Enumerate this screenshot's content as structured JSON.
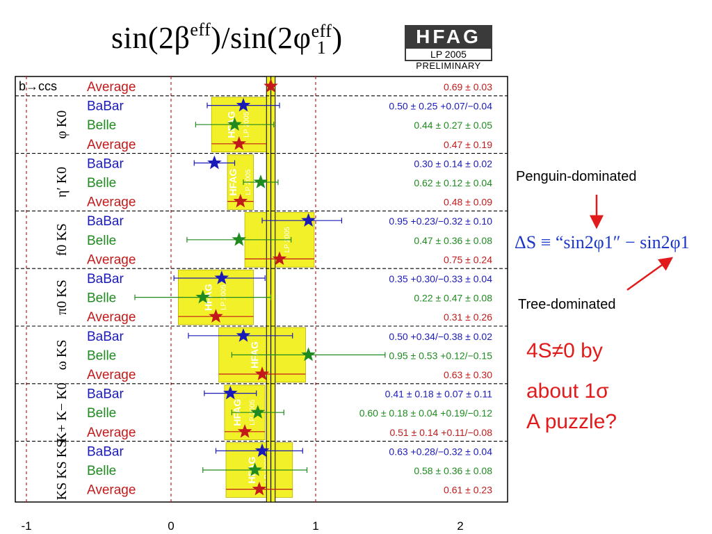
{
  "title": {
    "prefix": "sin(2β",
    "sup1": "eff",
    "mid": ")/sin(2φ",
    "sup2": "eff",
    "sub2": "1",
    "suffix": ")"
  },
  "logo": {
    "name": "HFAG",
    "edition": "LP 2005",
    "status": "PRELIMINARY"
  },
  "annotations": {
    "penguin": "Penguin-dominated",
    "tree": "Tree-dominated",
    "formula": "ΔS ≡ “sin2φ1″ − sin2φ1",
    "puzzle_line1": "4S≠0 by",
    "puzzle_line2": "about 1σ",
    "puzzle_line3": "A puzzle?"
  },
  "chart_data": {
    "type": "scatter",
    "title": "sin(2β^eff)/sin(2φ1^eff)",
    "xlabel": "",
    "ylabel": "",
    "xlim": [
      -1,
      2
    ],
    "xticks": [
      -1,
      0,
      1,
      2
    ],
    "reference_lines": [
      -1,
      1
    ],
    "ccs_average": {
      "value": 0.69,
      "error": 0.03
    },
    "groups": [
      {
        "label": "b→ccs",
        "rows": [
          {
            "experiment": "Average",
            "value": 0.69,
            "stat_lo": 0.03,
            "stat_hi": 0.03,
            "label": "0.69 ± 0.03",
            "color": "#c21a1a"
          }
        ]
      },
      {
        "label": "φ K0",
        "rows": [
          {
            "experiment": "BaBar",
            "value": 0.5,
            "stat_lo": 0.25,
            "stat_hi": 0.25,
            "label": "0.50 ± 0.25 +0.07/−0.04",
            "color": "#1a1ab8"
          },
          {
            "experiment": "Belle",
            "value": 0.44,
            "stat_lo": 0.27,
            "stat_hi": 0.27,
            "label": "0.44 ± 0.27 ± 0.05",
            "color": "#1f8a1f"
          },
          {
            "experiment": "Average",
            "value": 0.47,
            "stat_lo": 0.19,
            "stat_hi": 0.19,
            "label": "0.47 ± 0.19",
            "color": "#c21a1a"
          }
        ]
      },
      {
        "label": "η′ K0",
        "rows": [
          {
            "experiment": "BaBar",
            "value": 0.3,
            "stat_lo": 0.14,
            "stat_hi": 0.14,
            "label": "0.30 ± 0.14 ± 0.02",
            "color": "#1a1ab8"
          },
          {
            "experiment": "Belle",
            "value": 0.62,
            "stat_lo": 0.12,
            "stat_hi": 0.12,
            "label": "0.62 ± 0.12 ± 0.04",
            "color": "#1f8a1f"
          },
          {
            "experiment": "Average",
            "value": 0.48,
            "stat_lo": 0.09,
            "stat_hi": 0.09,
            "label": "0.48 ± 0.09",
            "color": "#c21a1a"
          }
        ]
      },
      {
        "label": "f0 KS",
        "rows": [
          {
            "experiment": "BaBar",
            "value": 0.95,
            "stat_lo": 0.32,
            "stat_hi": 0.23,
            "label": "0.95 +0.23/−0.32 ± 0.10",
            "color": "#1a1ab8"
          },
          {
            "experiment": "Belle",
            "value": 0.47,
            "stat_lo": 0.36,
            "stat_hi": 0.36,
            "label": "0.47 ± 0.36 ± 0.08",
            "color": "#1f8a1f"
          },
          {
            "experiment": "Average",
            "value": 0.75,
            "stat_lo": 0.24,
            "stat_hi": 0.24,
            "label": "0.75 ± 0.24",
            "color": "#c21a1a"
          }
        ]
      },
      {
        "label": "π0 KS",
        "rows": [
          {
            "experiment": "BaBar",
            "value": 0.35,
            "stat_lo": 0.33,
            "stat_hi": 0.3,
            "label": "0.35 +0.30/−0.33 ± 0.04",
            "color": "#1a1ab8"
          },
          {
            "experiment": "Belle",
            "value": 0.22,
            "stat_lo": 0.47,
            "stat_hi": 0.47,
            "label": "0.22 ± 0.47 ± 0.08",
            "color": "#1f8a1f"
          },
          {
            "experiment": "Average",
            "value": 0.31,
            "stat_lo": 0.26,
            "stat_hi": 0.26,
            "label": "0.31 ± 0.26",
            "color": "#c21a1a"
          }
        ]
      },
      {
        "label": "ω KS",
        "rows": [
          {
            "experiment": "BaBar",
            "value": 0.5,
            "stat_lo": 0.38,
            "stat_hi": 0.34,
            "label": "0.50 +0.34/−0.38 ± 0.02",
            "color": "#1a1ab8"
          },
          {
            "experiment": "Belle",
            "value": 0.95,
            "stat_lo": 0.53,
            "stat_hi": 0.53,
            "label": "0.95 ± 0.53 +0.12/−0.15",
            "color": "#1f8a1f"
          },
          {
            "experiment": "Average",
            "value": 0.63,
            "stat_lo": 0.3,
            "stat_hi": 0.3,
            "label": "0.63 ± 0.30",
            "color": "#c21a1a"
          }
        ]
      },
      {
        "label": "K+ K− K0",
        "rows": [
          {
            "experiment": "BaBar",
            "value": 0.41,
            "stat_lo": 0.18,
            "stat_hi": 0.18,
            "label": "0.41 ± 0.18 ± 0.07 ± 0.11",
            "color": "#1a1ab8"
          },
          {
            "experiment": "Belle",
            "value": 0.6,
            "stat_lo": 0.18,
            "stat_hi": 0.18,
            "label": "0.60 ± 0.18 ± 0.04 +0.19/−0.12",
            "color": "#1f8a1f"
          },
          {
            "experiment": "Average",
            "value": 0.51,
            "stat_lo": 0.14,
            "stat_hi": 0.14,
            "label": "0.51 ± 0.14 +0.11/−0.08",
            "color": "#c21a1a"
          }
        ]
      },
      {
        "label": "KS KS KS",
        "rows": [
          {
            "experiment": "BaBar",
            "value": 0.63,
            "stat_lo": 0.32,
            "stat_hi": 0.28,
            "label": "0.63 +0.28/−0.32 ± 0.04",
            "color": "#1a1ab8"
          },
          {
            "experiment": "Belle",
            "value": 0.58,
            "stat_lo": 0.36,
            "stat_hi": 0.36,
            "label": "0.58 ± 0.36 ± 0.08",
            "color": "#1f8a1f"
          },
          {
            "experiment": "Average",
            "value": 0.61,
            "stat_lo": 0.23,
            "stat_hi": 0.23,
            "label": "0.61 ± 0.23",
            "color": "#c21a1a"
          }
        ]
      }
    ],
    "band_tags": [
      "HFAG",
      "LP 2005"
    ]
  }
}
